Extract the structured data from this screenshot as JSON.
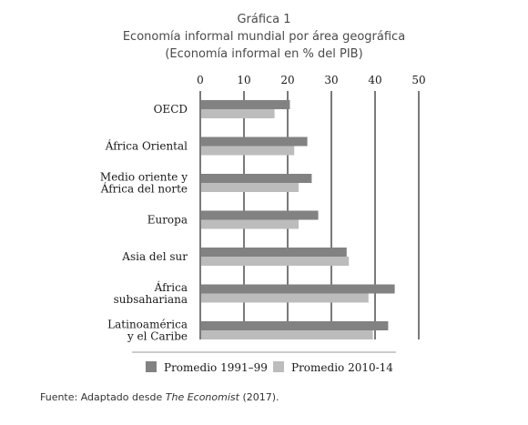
{
  "chart_data": {
    "type": "bar",
    "orientation": "horizontal",
    "title": "Gráfica 1",
    "subtitle": "Economía informal mundial por área geográfica",
    "subtitle2": "(Economía informal en % del PIB)",
    "categories": [
      [
        "OECD"
      ],
      [
        "África Oriental"
      ],
      [
        "Medio oriente y",
        "África del norte"
      ],
      [
        "Europa"
      ],
      [
        "Asia del sur"
      ],
      [
        "África",
        "subsahariana"
      ],
      [
        "Latinoamérica",
        "y el Caribe"
      ]
    ],
    "series": [
      {
        "name": "Promedio 1991–99",
        "color": "#828282",
        "values": [
          20.5,
          24.5,
          25.5,
          27,
          33.5,
          44.5,
          43
        ]
      },
      {
        "name": "Promedio 2010-14",
        "color": "#bcbcbc",
        "values": [
          17,
          21.5,
          22.5,
          22.5,
          34,
          38.5,
          39.5
        ]
      }
    ],
    "xlim": [
      0,
      50
    ],
    "xticks": [
      0,
      10,
      20,
      30,
      40,
      50
    ],
    "grid": true,
    "legend_position": "bottom"
  },
  "source": {
    "prefix": "Fuente: Adaptado desde ",
    "work": "The Economist",
    "suffix": " (2017)."
  }
}
